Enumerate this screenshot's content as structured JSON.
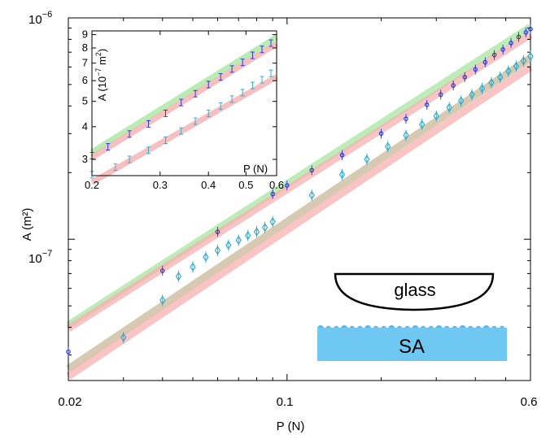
{
  "chart_data": [
    {
      "type": "scatter",
      "scale": "log-log",
      "xlabel": "P (N)",
      "ylabel": "A (m²)",
      "xlim": [
        0.02,
        0.6
      ],
      "ylim": [
        2.3e-08,
        1e-06
      ],
      "xticks": [
        {
          "value": 0.02,
          "label": "0.02"
        },
        {
          "value": 0.1,
          "label": "0.1"
        },
        {
          "value": 0.6,
          "label": "0.6"
        }
      ],
      "yticks": [
        {
          "value": 1e-07,
          "base": "10",
          "exp": "−7"
        },
        {
          "value": 1e-06,
          "base": "10",
          "exp": "−6"
        }
      ],
      "grid": false,
      "series": [
        {
          "marker": "circle",
          "color": "#1f2fd6",
          "x": [
            0.02,
            0.04,
            0.06,
            0.09,
            0.1,
            0.12,
            0.15,
            0.2,
            0.24,
            0.28,
            0.31,
            0.34,
            0.37,
            0.4,
            0.43,
            0.46,
            0.49,
            0.52,
            0.55,
            0.58,
            0.6
          ],
          "y": [
            3.1e-08,
            7.2e-08,
            1.08e-07,
            1.6e-07,
            1.75e-07,
            2.05e-07,
            2.4e-07,
            3e-07,
            3.5e-07,
            4.05e-07,
            4.5e-07,
            4.95e-07,
            5.4e-07,
            5.85e-07,
            6.3e-07,
            6.8e-07,
            7.2e-07,
            7.7e-07,
            8.2e-07,
            8.6e-07,
            8.9e-07
          ]
        },
        {
          "marker": "diamond",
          "color": "#2aa8c8",
          "x": [
            0.03,
            0.04,
            0.045,
            0.05,
            0.055,
            0.06,
            0.065,
            0.07,
            0.075,
            0.08,
            0.085,
            0.09,
            0.12,
            0.15,
            0.18,
            0.21,
            0.24,
            0.27,
            0.3,
            0.33,
            0.36,
            0.39,
            0.42,
            0.45,
            0.48,
            0.51,
            0.54,
            0.57,
            0.6
          ],
          "y": [
            3.6e-08,
            5.3e-08,
            6.8e-08,
            7.5e-08,
            8.3e-08,
            8.9e-08,
            9.4e-08,
            9.9e-08,
            1.04e-07,
            1.08e-07,
            1.13e-07,
            1.2e-07,
            1.58e-07,
            1.96e-07,
            2.3e-07,
            2.62e-07,
            2.95e-07,
            3.3e-07,
            3.6e-07,
            3.93e-07,
            4.22e-07,
            4.5e-07,
            4.8e-07,
            5.1e-07,
            5.4e-07,
            5.75e-07,
            6.05e-07,
            6.4e-07,
            6.7e-07
          ]
        }
      ],
      "fit_bands": [
        {
          "color": "#a8e6a0",
          "x": [
            0.02,
            0.6
          ],
          "y": [
            4.1e-08,
            9.1e-07
          ]
        },
        {
          "color": "#f5b0b0",
          "x": [
            0.02,
            0.6
          ],
          "y": [
            3.95e-08,
            8.4e-07
          ]
        },
        {
          "color": "#c9b89a",
          "x": [
            0.02,
            0.6
          ],
          "y": [
            2.6e-08,
            6.6e-07
          ]
        },
        {
          "color": "#f5b0b0",
          "x": [
            0.02,
            0.6
          ],
          "y": [
            2.4e-08,
            6e-07
          ]
        }
      ],
      "inset": {
        "type": "scatter",
        "scale": "log-log",
        "xlabel": "P (N)",
        "ylabel_prefix": "A (10",
        "ylabel_exp": "−7",
        "ylabel_suffix": " m",
        "ylabel_exp2": "2",
        "ylabel_close": ")",
        "xlim": [
          0.2,
          0.6
        ],
        "ylim": [
          2.6,
          9.3
        ],
        "xticks": [
          0.2,
          0.3,
          0.4,
          0.5,
          0.6
        ],
        "xtick_labels": [
          "0.2",
          "0.3",
          "0.4",
          "0.5",
          "0.6"
        ],
        "yticks": [
          3,
          4,
          5,
          6,
          7,
          8,
          9
        ],
        "ytick_labels": [
          "3",
          "4",
          "5",
          "6",
          "7",
          "8",
          "9"
        ],
        "series": [
          {
            "color": "#1f2fd6",
            "x": [
              0.2,
              0.22,
              0.25,
              0.28,
              0.31,
              0.34,
              0.37,
              0.4,
              0.43,
              0.46,
              0.49,
              0.52,
              0.55,
              0.58
            ],
            "y": [
              3.1,
              3.35,
              3.75,
              4.1,
              4.5,
              4.95,
              5.35,
              5.8,
              6.2,
              6.65,
              7.05,
              7.5,
              7.9,
              8.35
            ]
          },
          {
            "color": "#2aa8c8",
            "x": [
              0.2,
              0.23,
              0.25,
              0.28,
              0.31,
              0.34,
              0.37,
              0.4,
              0.43,
              0.46,
              0.49,
              0.52,
              0.55,
              0.58
            ],
            "y": [
              2.62,
              2.8,
              3.0,
              3.25,
              3.55,
              3.85,
              4.2,
              4.5,
              4.8,
              5.1,
              5.4,
              5.75,
              6.05,
              6.4
            ]
          }
        ],
        "fit_bands": [
          {
            "color": "#a8e6a0",
            "x": [
              0.2,
              0.6
            ],
            "y": [
              3.2,
              8.8
            ]
          },
          {
            "color": "#f5b0b0",
            "x": [
              0.2,
              0.6
            ],
            "y": [
              3.05,
              8.3
            ]
          },
          {
            "color": "#f5b0b0",
            "x": [
              0.2,
              0.6
            ],
            "y": [
              2.45,
              6.2
            ]
          }
        ]
      }
    }
  ],
  "schematic": {
    "glass_label": "glass",
    "substrate_label": "SA",
    "substrate_color": "#6fc8f2",
    "bump_color": "#5ab9ea"
  }
}
